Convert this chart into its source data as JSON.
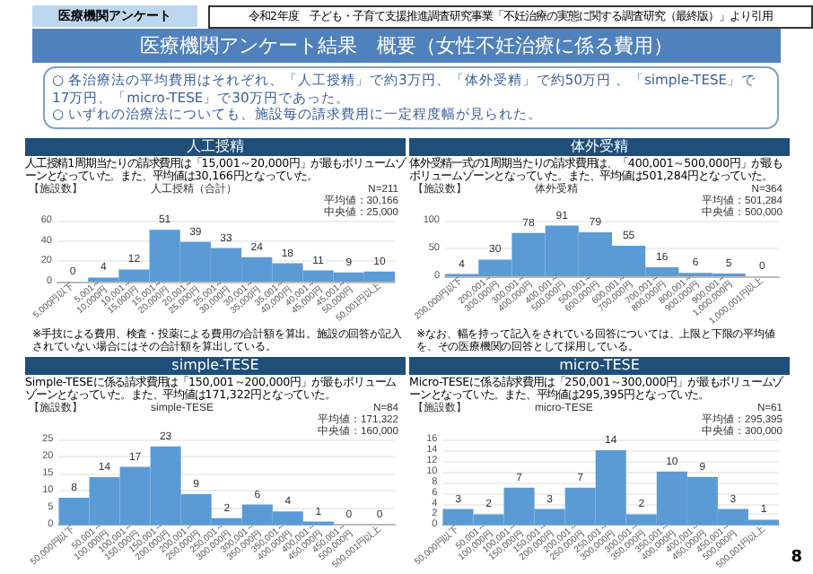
{
  "chart_data": [
    {
      "type": "other",
      "title": "医療機関アンケート結果　概要（女性不妊治療に係る費用）",
      "annotations": [
        "医療機関アンケート",
        "令和2年度　子ども・子育て支援推進調査研究事業「不妊治療の実態に関する調査研究（最終版）」より引用",
        "○ 各治療法の平均費用はそれぞれ、「人工授精」で約3万円、「体外受精」で約50万円 、「simple-TESE」で17万円、「micro-TESE」で30万円であった。",
        "○ いずれの治療法についても、施設毎の請求費用に一定程度幅が見られた。",
        "8"
      ]
    },
    {
      "type": "bar",
      "title": "人工授精",
      "subtitle": "人工授精1周期当たりの請求費用は「15,001～20,000円」が最もボリュームゾーンとなっていた。また、平均値は30,166円となっていた。",
      "ylabel": "【施設数】",
      "annotations": [
        "人工授精（合計）",
        "N=211",
        "平均値：30,166",
        "中央値：25,000",
        "※手技による費用、検査・投薬による費用の合計額を算出。施設の回答が記入されていない場合にはその合計額を算出している。"
      ],
      "categories": [
        "5,000円以下",
        "5,001～10,000円",
        "10,001～15,000円",
        "15,001～20,000円",
        "20,001～25,000円",
        "25,001～30,000円",
        "30,001～35,000円",
        "35,001～40,000円",
        "40,001～45,000円",
        "45,001～50,000円",
        "50,001円以上"
      ],
      "values": [
        0,
        4,
        12,
        51,
        39,
        33,
        24,
        18,
        11,
        9,
        10
      ],
      "color": "#5b9bd5",
      "ylim": [
        0,
        60
      ],
      "yticks": [
        0,
        20,
        40,
        60
      ],
      "grid": "y",
      "data_labels": true
    },
    {
      "type": "bar",
      "title": "体外受精",
      "subtitle": "体外受精一式の1周期当たりの請求費用は、「400,001～500,000円」が最もボリュームゾーンとなっていた。また、平均値は501,284円となっていた。",
      "ylabel": "【施設数】",
      "annotations": [
        "体外受精",
        "N=364",
        "平均値：501,284",
        "中央値：500,000",
        "※なお、幅を持って記入をされている回答については、上限と下限の平均値を、その医療機関の回答として採用している。"
      ],
      "categories": [
        "200,000円以下",
        "200,001～300,000円",
        "300,001～400,000円",
        "400,001～500,000円",
        "500,001～600,000円",
        "600,001～700,000円",
        "700,001～800,000円",
        "800,001～900,000円",
        "900,001～1,000,000円",
        "1,000,001円以上"
      ],
      "values": [
        4,
        30,
        78,
        91,
        79,
        55,
        16,
        6,
        5,
        0
      ],
      "color": "#5b9bd5",
      "ylim": [
        0,
        100
      ],
      "yticks": [
        0,
        50,
        100
      ],
      "grid": "y",
      "data_labels": true
    },
    {
      "type": "bar",
      "title": "simple-TESE",
      "subtitle": "Simple-TESEに係る請求費用は「150,001～200,000円」が最もボリュームゾーンとなっていた。また、平均値は171,322円となっていた。",
      "ylabel": "【施設数】",
      "annotations": [
        "simple-TESE",
        "N=84",
        "平均値：171,322",
        "中央値：160,000"
      ],
      "categories": [
        "50,000円以下",
        "50,001～100,000円",
        "100,001～150,000円",
        "150,001～200,000円",
        "200,001～250,000円",
        "250,001～300,000円",
        "300,001～350,000円",
        "350,001～400,000円",
        "400,001～450,000円",
        "450,001～500,000円",
        "500,001円以上"
      ],
      "values": [
        8,
        14,
        17,
        23,
        9,
        2,
        6,
        4,
        1,
        0,
        0
      ],
      "color": "#5b9bd5",
      "ylim": [
        0,
        25
      ],
      "yticks": [
        0,
        5,
        10,
        15,
        20,
        25
      ],
      "grid": "y",
      "data_labels": true
    },
    {
      "type": "bar",
      "title": "micro-TESE",
      "subtitle": "Micro-TESEに係る請求費用は「250,001～300,000円」が最もボリュームゾーンとなっていた。また、平均値は295,395円となっていた。",
      "ylabel": "【施設数】",
      "annotations": [
        "micro-TESE",
        "N=61",
        "平均値：295,395",
        "中央値：300,000"
      ],
      "categories": [
        "50,000円以下",
        "50,001～100,000円",
        "100,001～150,000円",
        "150,001～200,000円",
        "200,001～250,000円",
        "250,001～300,000円",
        "300,001～350,000円",
        "350,001～400,000円",
        "400,001～450,000円",
        "450,001～500,000円",
        "500,001円以上"
      ],
      "values": [
        3,
        2,
        7,
        3,
        7,
        14,
        2,
        10,
        9,
        3,
        1
      ],
      "color": "#5b9bd5",
      "ylim": [
        0,
        16
      ],
      "yticks": [
        0,
        2,
        4,
        6,
        8,
        10,
        12,
        14,
        16
      ],
      "grid": "y",
      "data_labels": true
    }
  ]
}
